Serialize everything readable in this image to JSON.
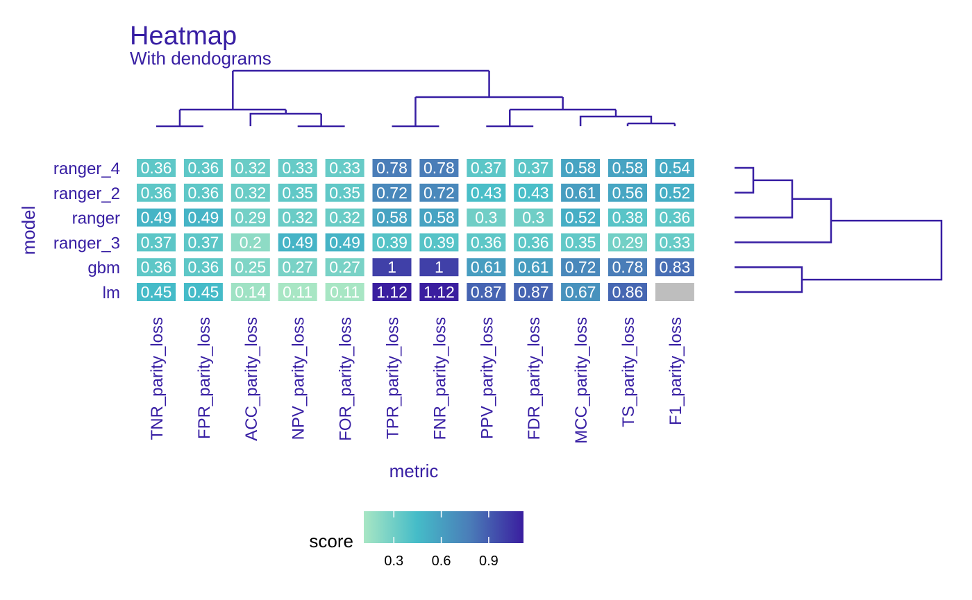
{
  "chart_data": {
    "type": "heatmap",
    "title": "Heatmap",
    "subtitle": "With dendograms",
    "xlabel": "metric",
    "ylabel": "model",
    "x": [
      "TNR_parity_loss",
      "FPR_parity_loss",
      "ACC_parity_loss",
      "NPV_parity_loss",
      "FOR_parity_loss",
      "TPR_parity_loss",
      "FNR_parity_loss",
      "PPV_parity_loss",
      "FDR_parity_loss",
      "MCC_parity_loss",
      "TS_parity_loss",
      "F1_parity_loss"
    ],
    "y": [
      "ranger_4",
      "ranger_2",
      "ranger",
      "ranger_3",
      "gbm",
      "lm"
    ],
    "values": [
      [
        0.36,
        0.36,
        0.32,
        0.33,
        0.33,
        0.78,
        0.78,
        0.37,
        0.37,
        0.58,
        0.58,
        0.54
      ],
      [
        0.36,
        0.36,
        0.32,
        0.35,
        0.35,
        0.72,
        0.72,
        0.43,
        0.43,
        0.61,
        0.56,
        0.52
      ],
      [
        0.49,
        0.49,
        0.29,
        0.32,
        0.32,
        0.58,
        0.58,
        0.3,
        0.3,
        0.52,
        0.38,
        0.36
      ],
      [
        0.37,
        0.37,
        0.2,
        0.49,
        0.49,
        0.39,
        0.39,
        0.36,
        0.36,
        0.35,
        0.29,
        0.33
      ],
      [
        0.36,
        0.36,
        0.25,
        0.27,
        0.27,
        1,
        1,
        0.61,
        0.61,
        0.72,
        0.78,
        0.83
      ],
      [
        0.45,
        0.45,
        0.14,
        0.11,
        0.11,
        1.12,
        1.12,
        0.87,
        0.87,
        0.67,
        0.86,
        null
      ]
    ],
    "color_scale": {
      "title": "score",
      "min": 0.11,
      "max": 1.12,
      "colors": [
        "#a8e6c4",
        "#45bcc8",
        "#4a7cb8",
        "#3a1e9f"
      ],
      "na_color": "#bebebe",
      "ticks": [
        0.3,
        0.6,
        0.9
      ],
      "tick_labels": [
        "0.3",
        "0.6",
        "0.9"
      ]
    },
    "legend_position": "bottom",
    "grid": false,
    "accent_color": "#371ea3"
  }
}
